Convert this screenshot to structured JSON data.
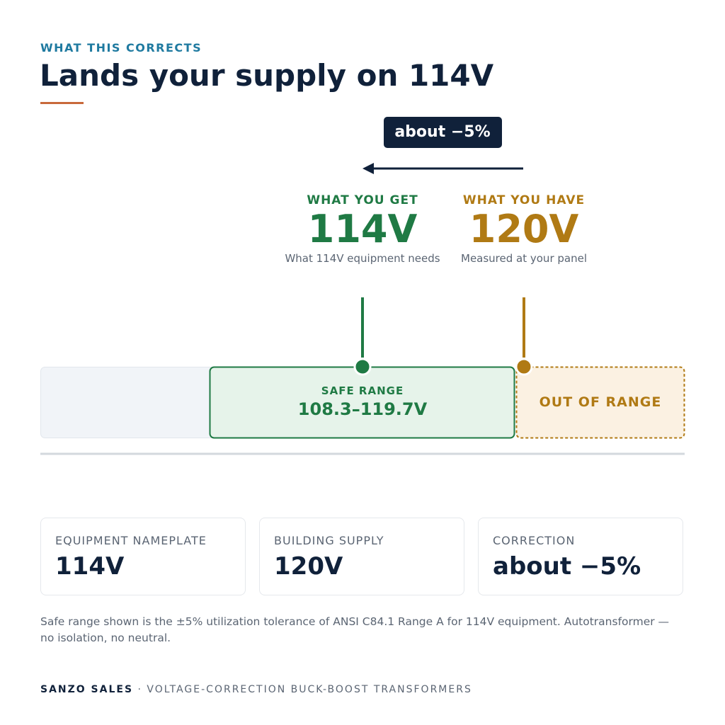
{
  "header": {
    "eyebrow": "WHAT THIS CORRECTS",
    "title": "Lands your supply on 114V"
  },
  "shift": {
    "label": "about −5%"
  },
  "target": {
    "label": "WHAT YOU GET",
    "value": "114V",
    "note": "What 114V equipment needs"
  },
  "current": {
    "label": "WHAT YOU HAVE",
    "value": "120V",
    "note": "Measured at your panel"
  },
  "range": {
    "safe_label": "SAFE RANGE",
    "safe_value": "108.3–119.7V",
    "out_label": "OUT OF RANGE"
  },
  "cards": [
    {
      "label": "EQUIPMENT NAMEPLATE",
      "value": "114V"
    },
    {
      "label": "BUILDING SUPPLY",
      "value": "120V"
    },
    {
      "label": "CORRECTION",
      "value": "about −5%"
    }
  ],
  "footnote": "Safe range shown is the ±5% utilization tolerance of ANSI C84.1 Range A for 114V equipment. Autotransformer — no isolation, no neutral.",
  "footer": {
    "brand": "SANZO SALES",
    "separator": "·",
    "tagline": "VOLTAGE-CORRECTION BUCK-BOOST TRANSFORMERS"
  }
}
